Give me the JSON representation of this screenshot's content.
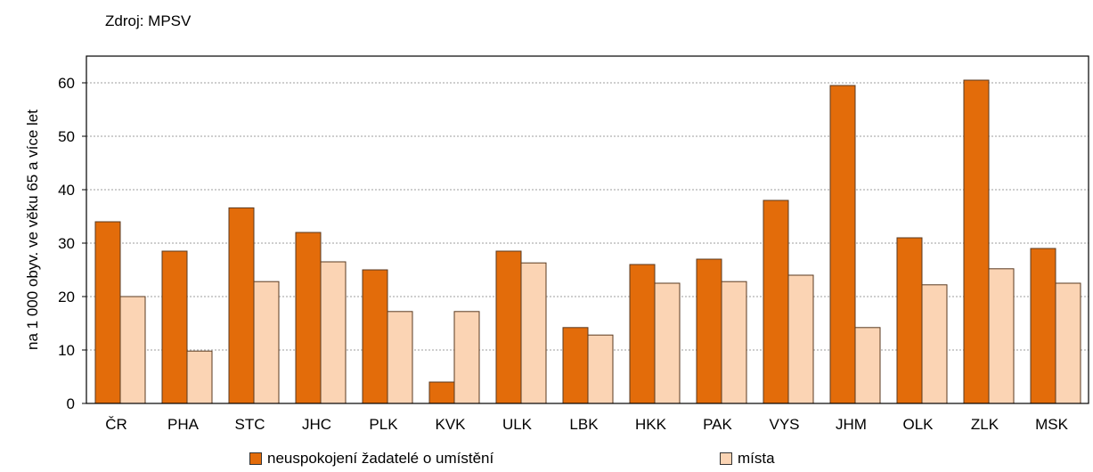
{
  "source_note": "Zdroj: MPSV",
  "colors": {
    "series1": "#E36C0A",
    "series2": "#FBD4B4",
    "bar_stroke": "#5a3a20",
    "grid": "#9e9e9e"
  },
  "chart_data": {
    "type": "bar",
    "title": "",
    "xlabel": "",
    "ylabel": "na 1 000 obyv. ve věku 65 a více let",
    "ylim": [
      0,
      65
    ],
    "yticks": [
      0,
      10,
      20,
      30,
      40,
      50,
      60
    ],
    "grid": true,
    "legend_position": "bottom",
    "categories": [
      "ČR",
      "PHA",
      "STC",
      "JHC",
      "PLK",
      "KVK",
      "ULK",
      "LBK",
      "HKK",
      "PAK",
      "VYS",
      "JHM",
      "OLK",
      "ZLK",
      "MSK"
    ],
    "series": [
      {
        "name": "neuspokojení žadatelé o umístění",
        "values": [
          34.0,
          28.5,
          36.6,
          32.0,
          25.0,
          4.0,
          28.5,
          14.2,
          26.0,
          27.0,
          38.0,
          59.5,
          31.0,
          60.5,
          29.0
        ]
      },
      {
        "name": "místa",
        "values": [
          20.0,
          9.8,
          22.8,
          26.5,
          17.2,
          17.2,
          26.3,
          12.8,
          22.5,
          22.8,
          24.0,
          14.2,
          22.2,
          25.2,
          22.5
        ]
      }
    ]
  }
}
